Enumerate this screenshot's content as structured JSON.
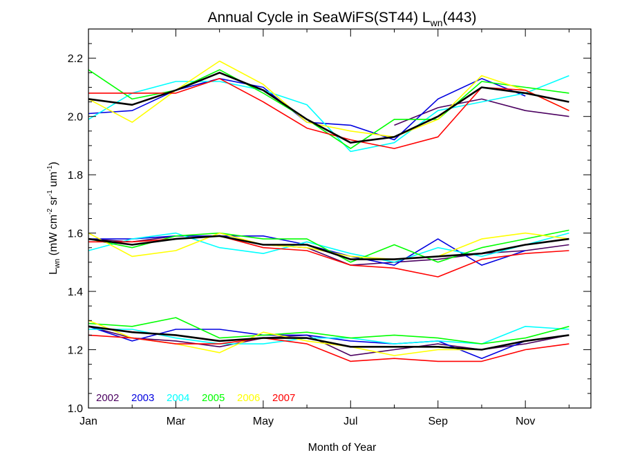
{
  "chart_data": {
    "type": "line",
    "title": {
      "prefix": "Annual Cycle in SeaWiFS(ST44) L",
      "subscript": "wn",
      "suffix": "(443)"
    },
    "xlabel": "Month of Year",
    "ylabel": {
      "main": "L",
      "main_sub": "wn",
      "units_open": " (mW cm",
      "units_sup1": "-2",
      "units_mid1": " sr",
      "units_sup2": "-1",
      "units_mid2": " um",
      "units_sup3": "-1",
      "units_close": ")"
    },
    "xlim": [
      1,
      12.5
    ],
    "ylim": [
      1.0,
      2.3
    ],
    "x_ticks": [
      {
        "value": 1,
        "label": "Jan"
      },
      {
        "value": 3,
        "label": "Mar"
      },
      {
        "value": 5,
        "label": "May"
      },
      {
        "value": 7,
        "label": "Jul"
      },
      {
        "value": 9,
        "label": "Sep"
      },
      {
        "value": 11,
        "label": "Nov"
      }
    ],
    "y_ticks": [
      {
        "value": 1.0,
        "label": "1.0"
      },
      {
        "value": 1.2,
        "label": "1.2"
      },
      {
        "value": 1.4,
        "label": "1.4"
      },
      {
        "value": 1.6,
        "label": "1.6"
      },
      {
        "value": 1.8,
        "label": "1.8"
      },
      {
        "value": 2.0,
        "label": "2.0"
      },
      {
        "value": 2.2,
        "label": "2.2"
      }
    ],
    "legend_position": "bottom-left",
    "x": [
      1,
      2,
      3,
      4,
      5,
      6,
      7,
      8,
      9,
      10,
      11,
      12
    ],
    "series": [
      {
        "name": "2002",
        "color": "#4b0060",
        "groups": [
          [
            null,
            null,
            null,
            null,
            null,
            null,
            null,
            1.97,
            2.03,
            2.06,
            2.02,
            2.0
          ],
          [
            1.58,
            1.57,
            1.59,
            1.59,
            1.56,
            1.55,
            1.49,
            1.5,
            1.51,
            1.53,
            1.54,
            1.56
          ],
          [
            1.28,
            1.24,
            1.23,
            1.21,
            1.24,
            1.25,
            1.18,
            1.2,
            1.22,
            1.2,
            1.22,
            1.25
          ]
        ]
      },
      {
        "name": "2003",
        "color": "#0000e0",
        "groups": [
          [
            2.01,
            2.02,
            2.09,
            2.13,
            2.1,
            1.98,
            1.97,
            1.92,
            2.06,
            2.13,
            2.07,
            null
          ],
          [
            1.58,
            1.58,
            1.59,
            1.59,
            1.59,
            1.56,
            1.52,
            1.49,
            1.58,
            1.49,
            1.54,
            null
          ],
          [
            1.28,
            1.23,
            1.27,
            1.27,
            1.25,
            1.25,
            1.23,
            1.22,
            1.23,
            1.17,
            1.23,
            null
          ]
        ]
      },
      {
        "name": "2004",
        "color": "#00ffff",
        "groups": [
          [
            1.99,
            2.08,
            2.12,
            2.12,
            2.09,
            2.04,
            1.88,
            1.91,
            2.02,
            2.05,
            2.08,
            2.14
          ],
          [
            1.54,
            1.58,
            1.6,
            1.55,
            1.53,
            1.57,
            1.53,
            1.5,
            1.55,
            1.52,
            1.56,
            1.6
          ],
          [
            1.27,
            1.27,
            1.24,
            1.22,
            1.22,
            1.24,
            1.24,
            1.22,
            1.23,
            1.22,
            1.28,
            1.27
          ]
        ]
      },
      {
        "name": "2005",
        "color": "#00ff00",
        "groups": [
          [
            2.16,
            2.06,
            2.09,
            2.16,
            2.08,
            1.99,
            1.89,
            1.99,
            1.99,
            2.12,
            2.1,
            2.08
          ],
          [
            1.58,
            1.55,
            1.59,
            1.6,
            1.58,
            1.58,
            1.5,
            1.56,
            1.5,
            1.55,
            1.58,
            1.61
          ],
          [
            1.29,
            1.28,
            1.31,
            1.24,
            1.25,
            1.26,
            1.24,
            1.25,
            1.24,
            1.22,
            1.24,
            1.28
          ]
        ]
      },
      {
        "name": "2006",
        "color": "#ffff00",
        "groups": [
          [
            2.06,
            1.98,
            2.09,
            2.19,
            2.11,
            1.98,
            1.95,
            1.93,
            1.99,
            2.14,
            2.09,
            2.02
          ],
          [
            1.6,
            1.52,
            1.54,
            1.6,
            1.56,
            1.55,
            1.52,
            1.51,
            1.52,
            1.58,
            1.6,
            1.58
          ],
          [
            1.3,
            1.24,
            1.22,
            1.19,
            1.26,
            1.23,
            1.21,
            1.18,
            1.2,
            1.2,
            1.23,
            1.25
          ]
        ]
      },
      {
        "name": "2007",
        "color": "#ff0000",
        "groups": [
          [
            2.08,
            2.08,
            2.08,
            2.13,
            2.05,
            1.96,
            1.92,
            1.89,
            1.93,
            2.1,
            2.09,
            2.02
          ],
          [
            1.57,
            1.57,
            1.58,
            1.59,
            1.55,
            1.54,
            1.49,
            1.48,
            1.45,
            1.51,
            1.53,
            1.54
          ],
          [
            1.25,
            1.24,
            1.22,
            1.22,
            1.24,
            1.22,
            1.16,
            1.17,
            1.16,
            1.16,
            1.2,
            1.22
          ]
        ]
      },
      {
        "name": "",
        "color": "#000000",
        "width": 2.6,
        "groups": [
          [
            2.06,
            2.04,
            2.09,
            2.15,
            2.09,
            1.99,
            1.91,
            1.93,
            2.0,
            2.1,
            2.08,
            2.05
          ],
          [
            1.58,
            1.56,
            1.58,
            1.59,
            1.56,
            1.56,
            1.51,
            1.51,
            1.52,
            1.53,
            1.56,
            1.58
          ],
          [
            1.28,
            1.26,
            1.25,
            1.23,
            1.24,
            1.24,
            1.21,
            1.21,
            1.21,
            1.2,
            1.23,
            1.25
          ]
        ]
      }
    ]
  }
}
